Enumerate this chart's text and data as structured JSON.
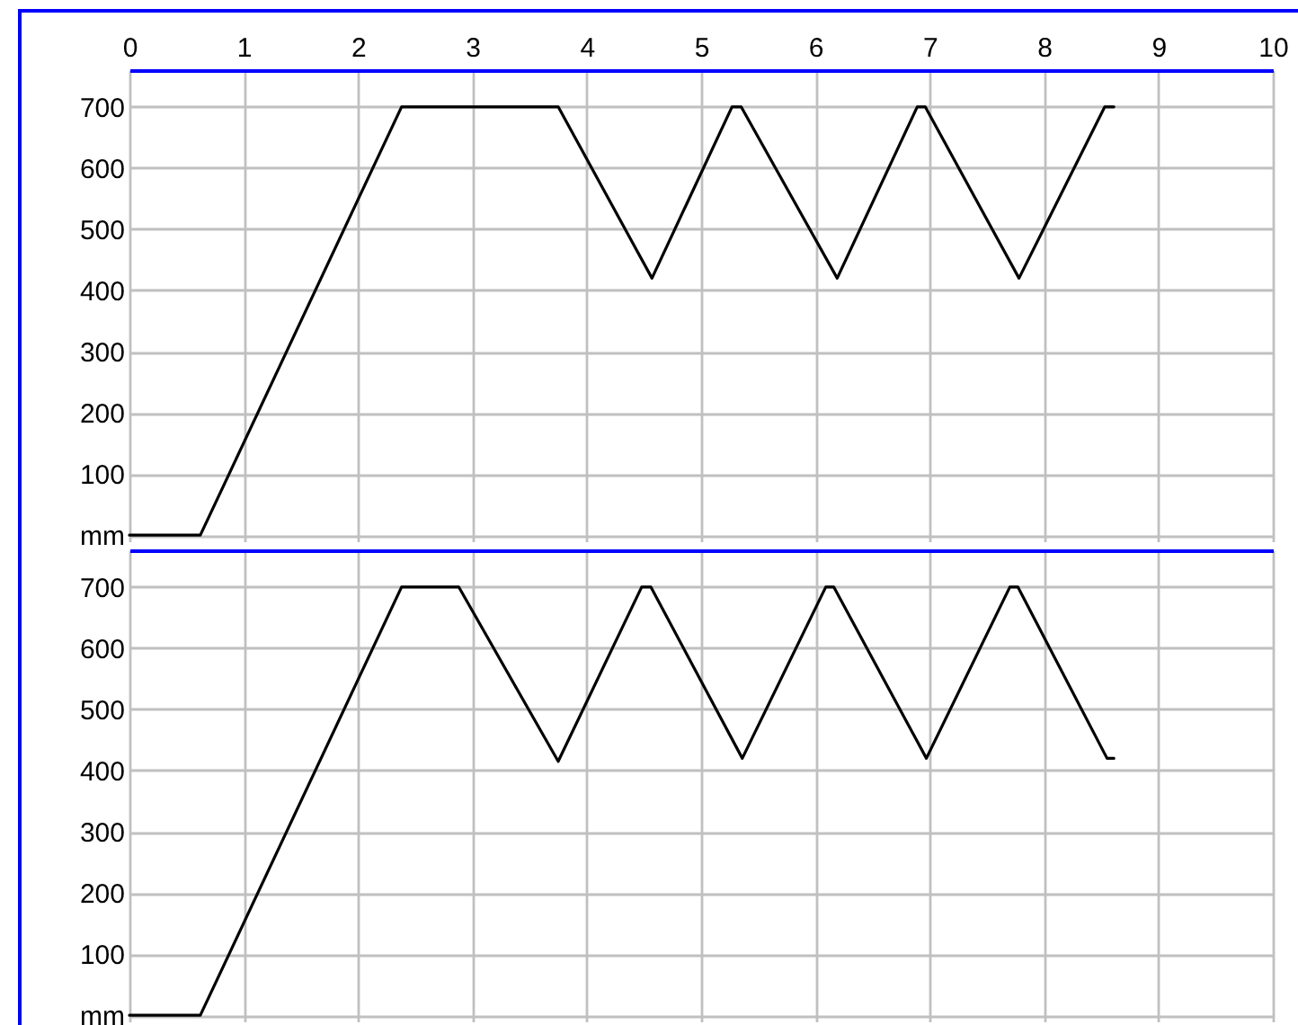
{
  "chart_data": [
    {
      "type": "line",
      "xlim": [
        0,
        10
      ],
      "xticks": [
        0,
        1,
        2,
        3,
        4,
        5,
        6,
        7,
        8,
        9,
        10
      ],
      "ylim": [
        -10,
        760
      ],
      "yticks": [
        {
          "value": 0,
          "label": "mm"
        },
        100,
        200,
        300,
        400,
        500,
        600,
        700
      ],
      "grid": true,
      "series": [
        {
          "color": "#000000",
          "x": [
            0,
            0.62,
            2.38,
            3.75,
            4.57,
            5.27,
            5.35,
            6.19,
            6.89,
            6.96,
            7.78,
            8.53,
            8.61
          ],
          "values": [
            0,
            0,
            700,
            700,
            420,
            700,
            700,
            420,
            700,
            700,
            420,
            700,
            700
          ]
        }
      ]
    },
    {
      "type": "line",
      "xlim": [
        0,
        10
      ],
      "xticks": [
        0,
        1,
        2,
        3,
        4,
        5,
        6,
        7,
        8,
        9,
        10
      ],
      "ylim": [
        -10,
        760
      ],
      "yticks": [
        {
          "value": 0,
          "label": "mm"
        },
        100,
        200,
        300,
        400,
        500,
        600,
        700
      ],
      "grid": true,
      "tick_labels": "y",
      "series": [
        {
          "color": "#000000",
          "x": [
            0,
            0.62,
            2.38,
            2.88,
            3.75,
            4.48,
            4.56,
            5.36,
            6.09,
            6.16,
            6.97,
            7.7,
            7.77,
            8.55,
            8.61
          ],
          "values": [
            0,
            0,
            700,
            700,
            415,
            700,
            700,
            420,
            700,
            700,
            420,
            700,
            700,
            420,
            420
          ]
        }
      ]
    }
  ]
}
